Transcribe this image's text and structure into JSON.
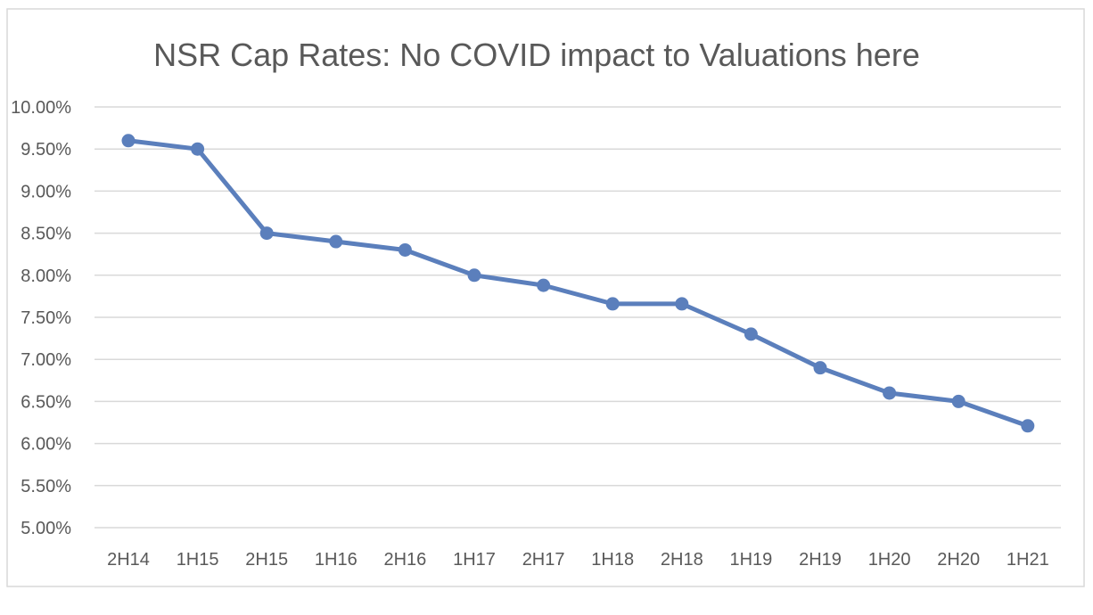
{
  "colors": {
    "series": "#5b7fbc",
    "text": "#595959",
    "grid": "#d9d9d9"
  },
  "chart_data": {
    "type": "line",
    "title": "NSR Cap Rates: No COVID impact to Valuations here",
    "xlabel": "",
    "ylabel": "",
    "categories": [
      "2H14",
      "1H15",
      "2H15",
      "1H16",
      "2H16",
      "1H17",
      "2H17",
      "1H18",
      "2H18",
      "1H19",
      "2H19",
      "1H20",
      "2H20",
      "1H21"
    ],
    "series": [
      {
        "values": [
          9.6,
          9.5,
          8.5,
          8.4,
          8.3,
          8.0,
          7.88,
          7.66,
          7.66,
          7.3,
          6.9,
          6.6,
          6.5,
          6.21
        ]
      }
    ],
    "ylim": [
      5.0,
      10.0
    ],
    "yticks": [
      5.0,
      5.5,
      6.0,
      6.5,
      7.0,
      7.5,
      8.0,
      8.5,
      9.0,
      9.5,
      10.0
    ],
    "ytick_labels": [
      "5.00%",
      "5.50%",
      "6.00%",
      "6.50%",
      "7.00%",
      "7.50%",
      "8.00%",
      "8.50%",
      "9.00%",
      "9.50%",
      "10.00%"
    ],
    "grid": true,
    "legend": "none",
    "markers": true
  }
}
